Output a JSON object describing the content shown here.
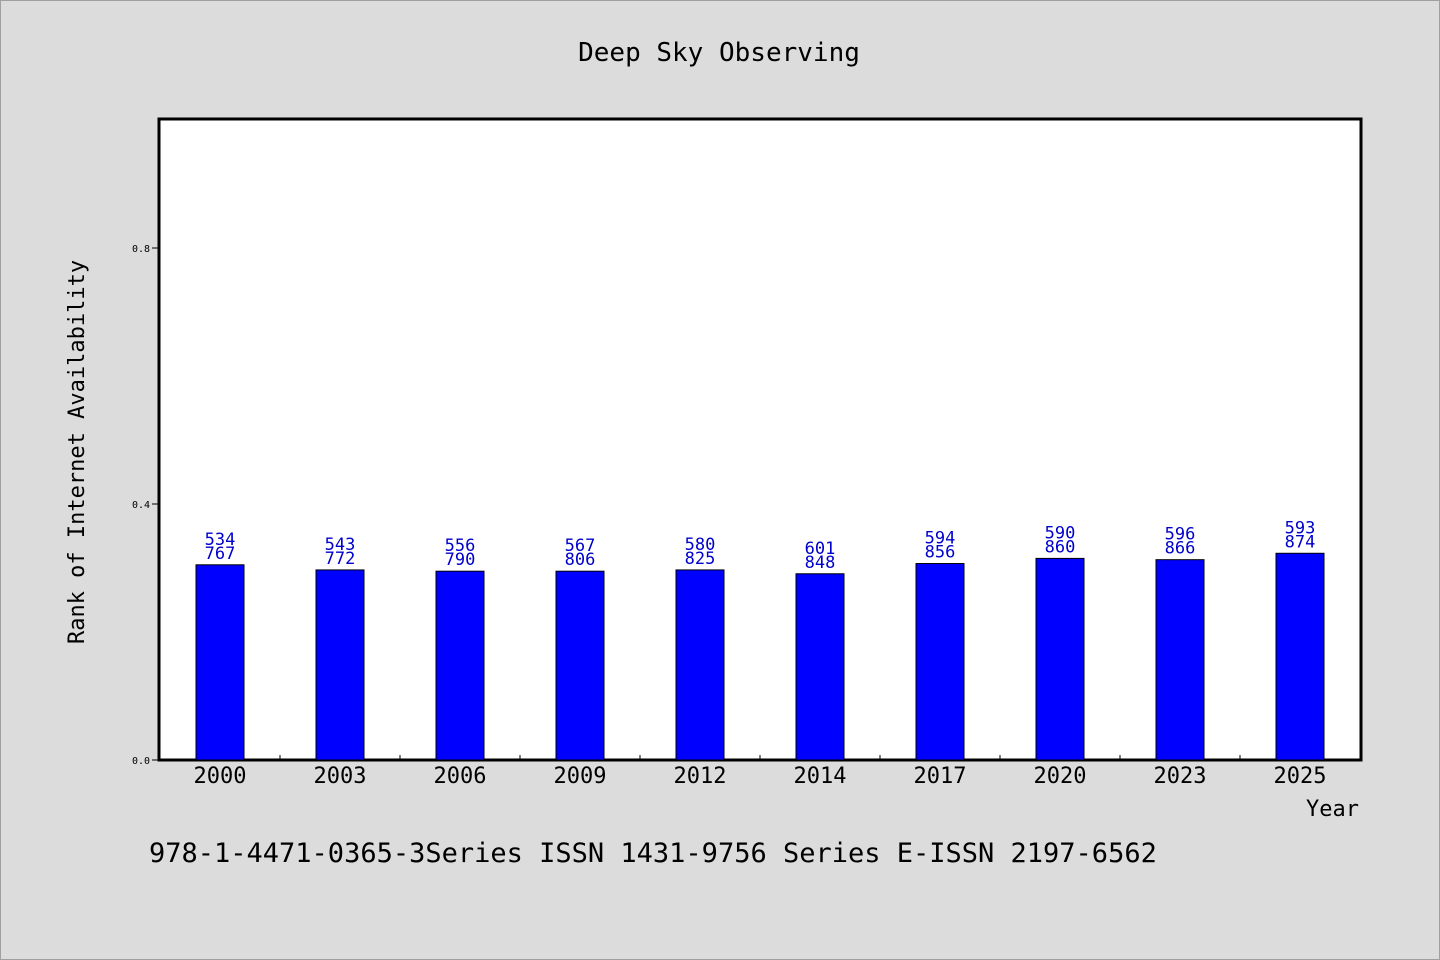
{
  "chart_data": {
    "type": "bar",
    "title": "Deep Sky Observing",
    "xlabel": "Year",
    "ylabel": "Rank of Internet Availability",
    "categories": [
      "2000",
      "2003",
      "2006",
      "2009",
      "2012",
      "2014",
      "2017",
      "2020",
      "2023",
      "2025"
    ],
    "values": [
      0.305,
      0.297,
      0.295,
      0.295,
      0.297,
      0.291,
      0.307,
      0.315,
      0.313,
      0.323
    ],
    "data_labels_top": [
      "534",
      "543",
      "556",
      "567",
      "580",
      "601",
      "594",
      "590",
      "596",
      "593"
    ],
    "data_labels_bottom": [
      "767",
      "772",
      "790",
      "806",
      "825",
      "848",
      "856",
      "860",
      "866",
      "874"
    ],
    "yticks": [
      "0.0",
      "0.4",
      "0.8"
    ],
    "ylim": [
      0,
      1.0
    ],
    "bar_color": "#0000ff",
    "label_color": "#0000cc",
    "grid": false,
    "footer": "978-1-4471-0365-3Series ISSN 1431-9756 Series E-ISSN 2197-6562"
  }
}
